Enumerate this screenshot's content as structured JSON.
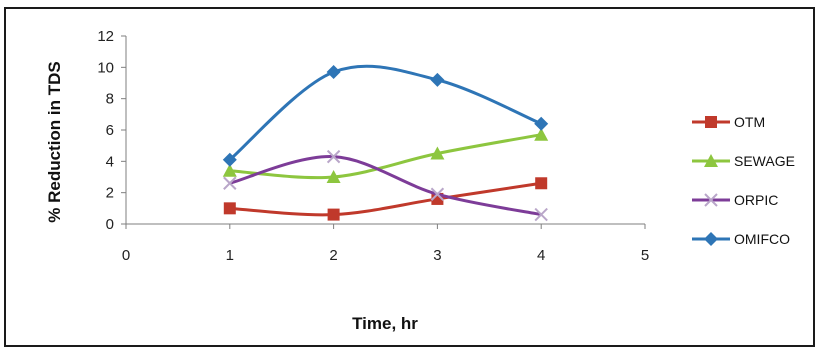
{
  "chart_data": {
    "type": "line",
    "title": "",
    "xlabel": "Time, hr",
    "ylabel": "% Reduction in TDS",
    "xlim": [
      0,
      5
    ],
    "ylim": [
      0,
      12
    ],
    "xticks": [
      "0",
      "1",
      "2",
      "3",
      "4",
      "5"
    ],
    "yticks": [
      "0",
      "2",
      "4",
      "6",
      "8",
      "10",
      "12"
    ],
    "grid": false,
    "smooth": true,
    "legend_position": "right",
    "x": [
      1,
      2,
      3,
      4
    ],
    "series": [
      {
        "name": "OTM",
        "values": [
          1.0,
          0.6,
          1.6,
          2.6
        ],
        "color": "#c0392b",
        "marker": "square"
      },
      {
        "name": "SEWAGE",
        "values": [
          3.4,
          3.0,
          4.5,
          5.7
        ],
        "color": "#8dc63f",
        "marker": "triangle"
      },
      {
        "name": "ORPIC",
        "values": [
          2.6,
          4.3,
          1.9,
          0.6
        ],
        "color": "#7d3c98",
        "marker": "x"
      },
      {
        "name": "OMIFCO",
        "values": [
          4.1,
          9.7,
          9.2,
          6.4
        ],
        "color": "#2e75b6",
        "marker": "diamond"
      }
    ]
  }
}
